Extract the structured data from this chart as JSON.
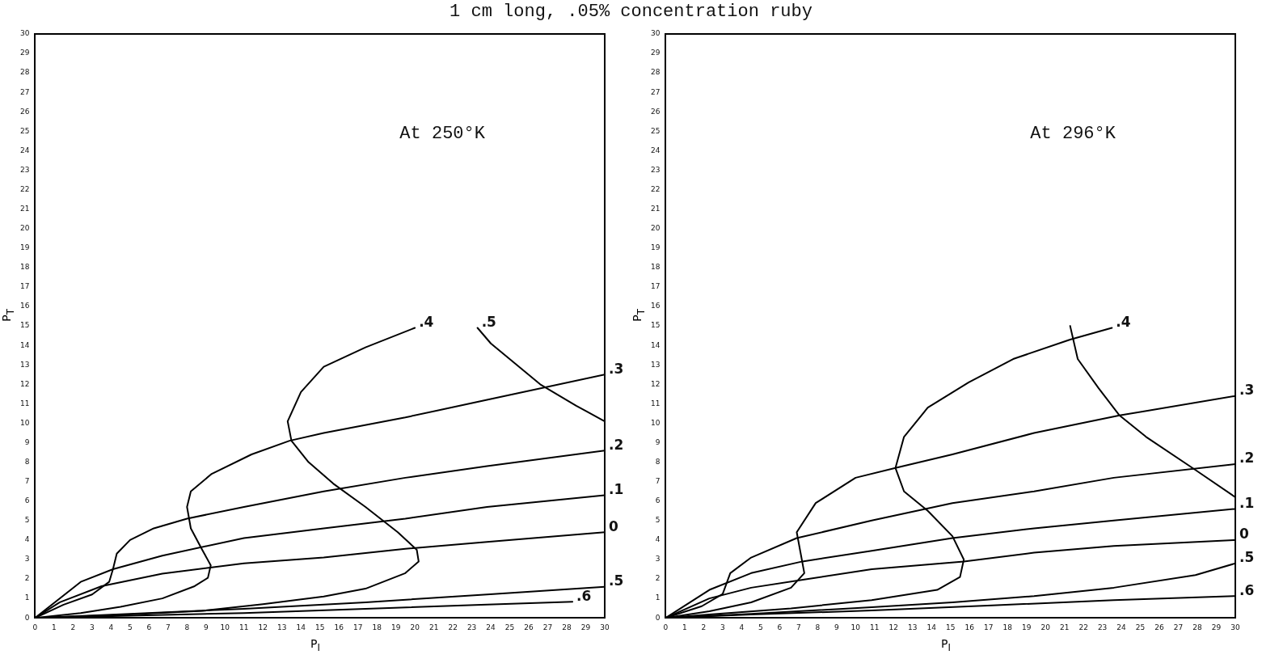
{
  "chart_data": [
    {
      "type": "line",
      "title": "1 cm long, .05% concentration ruby",
      "xlabel": "P$_{I}$",
      "ylabel": "P$_{T}$",
      "annotations": [
        "At 250°K"
      ],
      "xlim": [
        0,
        30
      ],
      "ylim": [
        0,
        30
      ],
      "xticks": [
        0,
        1,
        2,
        3,
        4,
        5,
        6,
        7,
        8,
        9,
        10,
        11,
        12,
        13,
        14,
        15,
        16,
        17,
        18,
        19,
        20,
        21,
        22,
        23,
        24,
        25,
        26,
        27,
        28,
        29,
        30
      ],
      "yticks": [
        0,
        1,
        2,
        3,
        4,
        5,
        6,
        7,
        8,
        9,
        10,
        11,
        12,
        13,
        14,
        15,
        16,
        17,
        18,
        19,
        20,
        21,
        22,
        23,
        24,
        25,
        26,
        27,
        28,
        29,
        30
      ],
      "series": [
        {
          "name": ".5",
          "color": "#000000",
          "x": [
            23.3,
            24.0,
            26.6,
            28.5,
            30
          ],
          "values": [
            14.9,
            14.1,
            12.0,
            10.9,
            10.1
          ]
        },
        {
          "name": ".4",
          "color": "#000000",
          "x": [
            20.0,
            17.4,
            15.2,
            14.0,
            13.3,
            13.5,
            14.4,
            15.7,
            17.4,
            19.1,
            20.1,
            20.2,
            19.5,
            17.4,
            15.2,
            12.0,
            8.8,
            4.5,
            0
          ],
          "values": [
            14.9,
            13.9,
            12.9,
            11.6,
            10.1,
            9.1,
            8.0,
            6.9,
            5.7,
            4.4,
            3.5,
            2.9,
            2.3,
            1.5,
            1.1,
            0.7,
            0.36,
            0.15,
            0
          ]
        },
        {
          "name": ".3",
          "color": "#000000",
          "x": [
            30,
            23.8,
            19.5,
            15.2,
            13.4,
            11.4,
            9.3,
            8.2,
            8.0,
            8.2,
            8.8,
            9.25,
            9.1,
            8.4,
            6.7,
            4.5,
            2.4,
            0
          ],
          "values": [
            12.5,
            11.2,
            10.3,
            9.5,
            9.1,
            8.4,
            7.4,
            6.5,
            5.7,
            4.6,
            3.5,
            2.7,
            2.06,
            1.63,
            1.0,
            0.57,
            0.25,
            0
          ]
        },
        {
          "name": ".2",
          "color": "#000000",
          "x": [
            30,
            23.8,
            19.5,
            15.2,
            11.0,
            8.0,
            6.25,
            5.0,
            4.3,
            4.1,
            3.9,
            3.0,
            1.5,
            0
          ],
          "values": [
            8.6,
            7.8,
            7.2,
            6.5,
            5.7,
            5.1,
            4.6,
            4.0,
            3.3,
            2.5,
            1.85,
            1.2,
            0.68,
            0
          ]
        },
        {
          "name": ".1",
          "color": "#000000",
          "x": [
            30,
            23.8,
            19.5,
            15.2,
            11.0,
            6.7,
            4.1,
            2.4,
            0
          ],
          "values": [
            6.3,
            5.7,
            5.1,
            4.6,
            4.1,
            3.2,
            2.5,
            1.85,
            0
          ]
        },
        {
          "name": "0",
          "color": "#000000",
          "x": [
            30,
            23.8,
            19.5,
            15.2,
            11.0,
            6.7,
            3.5,
            1.3,
            0
          ],
          "values": [
            4.4,
            3.9,
            3.55,
            3.1,
            2.8,
            2.27,
            1.63,
            0.8,
            0
          ]
        },
        {
          "name": ".5",
          "color": "#000000",
          "x": [
            30,
            23.8,
            17.4,
            11.0,
            4.5,
            0
          ],
          "values": [
            1.6,
            1.2,
            0.8,
            0.47,
            0.19,
            0
          ]
        },
        {
          "name": ".6",
          "color": "#000000",
          "x": [
            28.3,
            23.8,
            17.4,
            11.0,
            4.5,
            0
          ],
          "values": [
            0.83,
            0.68,
            0.47,
            0.25,
            0.1,
            0
          ]
        }
      ]
    },
    {
      "type": "line",
      "xlabel": "P$_{I}$",
      "ylabel": "P$_{T}$",
      "annotations": [
        "At 296°K"
      ],
      "xlim": [
        0,
        30
      ],
      "ylim": [
        0,
        30
      ],
      "xticks": [
        0,
        1,
        2,
        3,
        4,
        5,
        6,
        7,
        8,
        9,
        10,
        11,
        12,
        13,
        14,
        15,
        16,
        17,
        18,
        19,
        20,
        21,
        22,
        23,
        24,
        25,
        26,
        27,
        28,
        29,
        30
      ],
      "yticks": [
        0,
        1,
        2,
        3,
        4,
        5,
        6,
        7,
        8,
        9,
        10,
        11,
        12,
        13,
        14,
        15,
        16,
        17,
        18,
        19,
        20,
        21,
        22,
        23,
        24,
        25,
        26,
        27,
        28,
        29,
        30
      ],
      "series": [
        {
          "color": "#000000",
          "x": [
            21.3,
            21.7,
            22.8,
            23.9,
            25.3,
            27.9,
            30
          ],
          "values": [
            15.0,
            13.3,
            11.8,
            10.4,
            9.3,
            7.6,
            6.2
          ]
        },
        {
          "name": ".4",
          "color": "#000000",
          "x": [
            23.5,
            21.3,
            18.3,
            15.96,
            13.8,
            12.55,
            12.1,
            12.55,
            13.8,
            15.1,
            15.7,
            15.5,
            14.3,
            10.85,
            6.6,
            2.3,
            0
          ],
          "values": [
            14.9,
            14.3,
            13.3,
            12.1,
            10.8,
            9.3,
            7.7,
            6.5,
            5.5,
            4.2,
            3.0,
            2.1,
            1.44,
            0.91,
            0.49,
            0.17,
            0
          ]
        },
        {
          "name": ".3",
          "color": "#000000",
          "x": [
            30,
            23.9,
            19.4,
            15.1,
            12.1,
            10.0,
            7.9,
            6.9,
            7.1,
            7.3,
            6.6,
            4.5,
            2.3,
            0
          ],
          "values": [
            11.4,
            10.4,
            9.5,
            8.4,
            7.7,
            7.2,
            5.9,
            4.4,
            3.35,
            2.3,
            1.55,
            0.8,
            0.34,
            0
          ]
        },
        {
          "name": ".2",
          "color": "#000000",
          "x": [
            30,
            23.6,
            19.4,
            15.1,
            10.85,
            6.9,
            4.5,
            3.4,
            3.0,
            1.9,
            0
          ],
          "values": [
            7.9,
            7.2,
            6.5,
            5.9,
            5.0,
            4.1,
            3.1,
            2.3,
            1.23,
            0.6,
            0
          ]
        },
        {
          "name": ".1",
          "color": "#000000",
          "x": [
            30,
            23.6,
            19.4,
            15.1,
            10.85,
            7.2,
            4.5,
            2.3,
            0
          ],
          "values": [
            5.6,
            5.0,
            4.6,
            4.1,
            3.45,
            2.9,
            2.3,
            1.44,
            0
          ]
        },
        {
          "name": "0",
          "color": "#000000",
          "x": [
            30,
            23.6,
            19.4,
            15.7,
            10.85,
            7.3,
            4.5,
            2.3,
            0
          ],
          "values": [
            4.0,
            3.7,
            3.35,
            2.9,
            2.5,
            1.97,
            1.55,
            1.0,
            0
          ]
        },
        {
          "name": ".5",
          "color": "#000000",
          "x": [
            30,
            27.9,
            23.6,
            19.4,
            15.1,
            10.85,
            4.5,
            0
          ],
          "values": [
            2.8,
            2.2,
            1.55,
            1.12,
            0.8,
            0.55,
            0.21,
            0
          ]
        },
        {
          "name": ".6",
          "color": "#000000",
          "x": [
            30,
            23.6,
            17.2,
            10.85,
            4.5,
            0
          ],
          "values": [
            1.12,
            0.91,
            0.64,
            0.38,
            0.17,
            0
          ]
        }
      ]
    }
  ]
}
